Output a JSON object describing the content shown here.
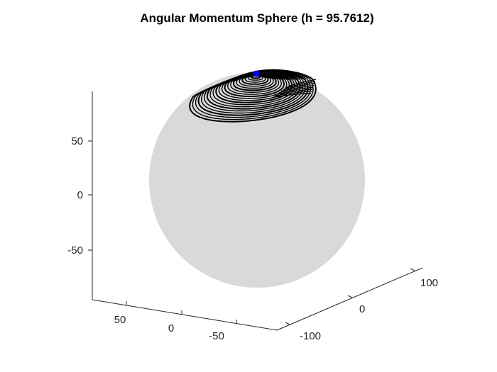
{
  "chart_data": {
    "type": "scatter",
    "projection": "3d",
    "title": "Angular Momentum Sphere (h = 95.7612)",
    "xlabel": "",
    "ylabel": "",
    "zlabel": "",
    "grid": false,
    "sphere": {
      "radius": 95.7612,
      "color": "#d9d9d9"
    },
    "axes": {
      "z": {
        "ticks": [
          50,
          0,
          -50
        ],
        "tick_labels": [
          "50",
          "0",
          "-50"
        ]
      },
      "x": {
        "ticks": [
          50,
          0,
          -50
        ],
        "tick_labels": [
          "50",
          "0",
          "-50"
        ]
      },
      "y": {
        "ticks": [
          100,
          0,
          -100
        ],
        "tick_labels": [
          "100",
          "0",
          "-100"
        ]
      }
    },
    "series": [
      {
        "kind": "trajectory",
        "color": "#000000"
      },
      {
        "kind": "marker",
        "color": "#0000ff"
      }
    ]
  }
}
